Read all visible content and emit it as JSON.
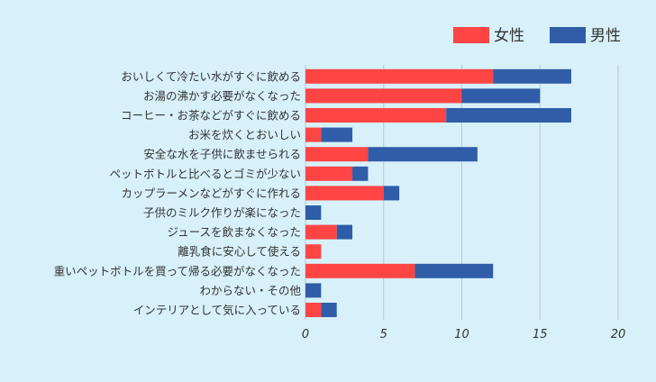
{
  "chart_data": {
    "type": "bar",
    "orientation": "horizontal",
    "stacked": true,
    "categories": [
      "おいしくて冷たい水がすぐに飲める",
      "お湯の沸かす必要がなくなった",
      "コーヒー・お茶などがすぐに飲める",
      "お米を炊くとおいしい",
      "安全な水を子供に飲ませられる",
      "ペットボトルと比べるとゴミが少ない",
      "カップラーメンなどがすぐに作れる",
      "子供のミルク作りが楽になった",
      "ジュースを飲まなくなった",
      "離乳食に安心して使える",
      "重いペットボトルを買って帰る必要がなくなった",
      "わからない・その他",
      "インテリアとして気に入っている"
    ],
    "series": [
      {
        "name": "女性",
        "color": "#ff4444",
        "values": [
          12,
          10,
          9,
          1,
          4,
          3,
          5,
          0,
          2,
          1,
          7,
          0,
          1
        ]
      },
      {
        "name": "男性",
        "color": "#2f5da8",
        "values": [
          5,
          5,
          8,
          2,
          7,
          1,
          1,
          1,
          1,
          0,
          5,
          1,
          1
        ]
      }
    ],
    "xlim": [
      0,
      20
    ],
    "xticks": [
      0,
      5,
      10,
      15,
      20
    ],
    "grid": true,
    "legend": "top-right",
    "title": "",
    "xlabel": "",
    "ylabel": ""
  }
}
